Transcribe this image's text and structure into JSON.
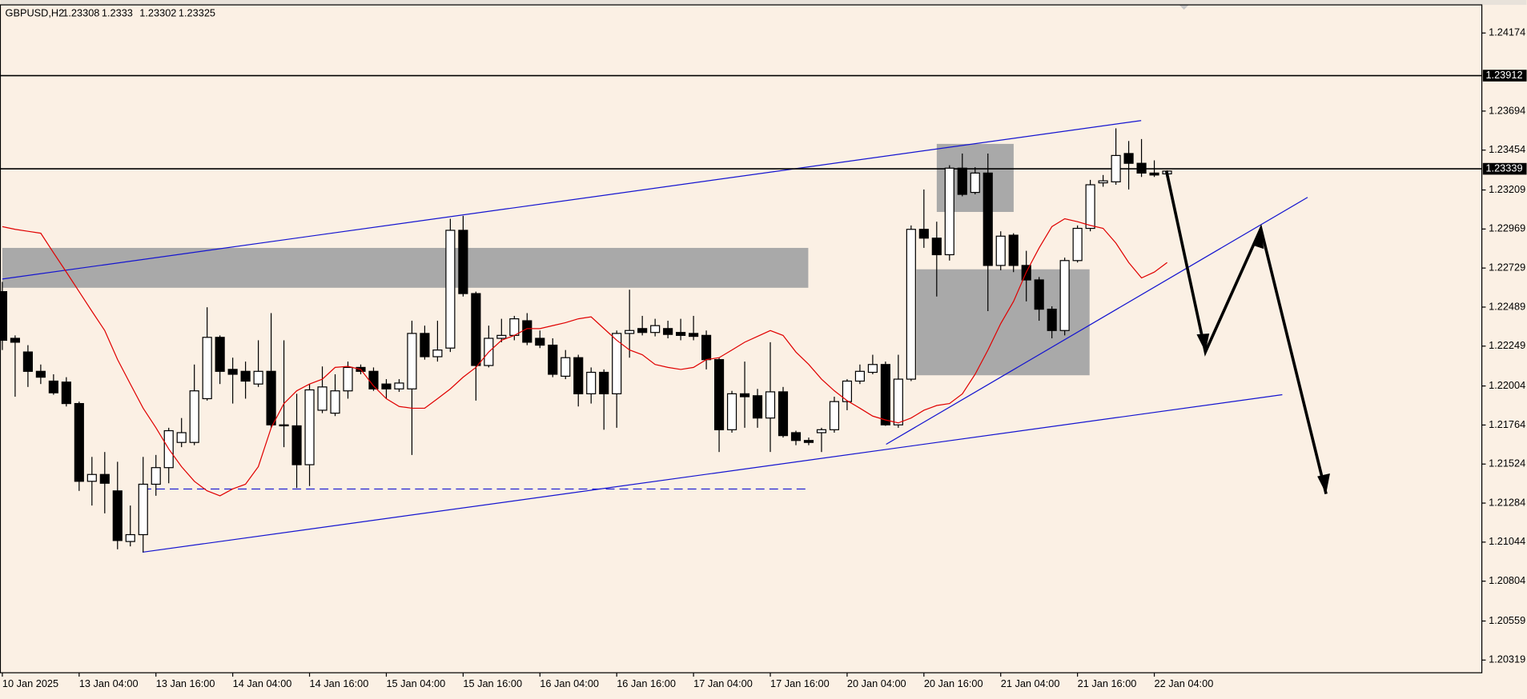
{
  "chart_data": {
    "type": "candlestick",
    "symbol": "GBPUSD,H2",
    "categories": [
      "10 Jan 2025",
      null,
      null,
      null,
      null,
      null,
      "13 Jan 04:00",
      null,
      null,
      null,
      null,
      null,
      "13 Jan 16:00",
      null,
      null,
      null,
      null,
      null,
      "14 Jan 04:00",
      null,
      null,
      null,
      null,
      null,
      "14 Jan 16:00",
      null,
      null,
      null,
      null,
      null,
      "15 Jan 04:00",
      null,
      null,
      null,
      null,
      null,
      "15 Jan 16:00",
      null,
      null,
      null,
      null,
      null,
      "16 Jan 04:00",
      null,
      null,
      null,
      null,
      null,
      "16 Jan 16:00",
      null,
      null,
      null,
      null,
      null,
      "17 Jan 04:00",
      null,
      null,
      null,
      null,
      null,
      "17 Jan 16:00",
      null,
      null,
      null,
      null,
      null,
      "20 Jan 04:00",
      null,
      null,
      null,
      null,
      null,
      "20 Jan 16:00",
      null,
      null,
      null,
      null,
      null,
      "21 Jan 04:00",
      null,
      null,
      null,
      null,
      null,
      "21 Jan 16:00",
      null,
      null,
      null,
      null,
      null,
      "22 Jan 04:00",
      null
    ],
    "open": [
      1.22584,
      1.22297,
      1.22213,
      1.22094,
      1.22034,
      1.22028,
      1.21896,
      1.21418,
      1.2146,
      1.21359,
      1.21048,
      1.2109,
      1.214,
      1.21502,
      1.21657,
      1.21657,
      1.21926,
      1.22303,
      1.22106,
      1.22094,
      1.22016,
      1.22094,
      1.21765,
      1.21759,
      1.2152,
      1.21855,
      1.21837,
      1.21974,
      1.22118,
      1.22094,
      1.22016,
      1.21986,
      1.21986,
      1.22327,
      1.22184,
      1.22237,
      1.22961,
      1.22572,
      1.2213,
      1.22297,
      1.22315,
      1.22405,
      1.22297,
      1.22255,
      1.22064,
      1.22178,
      1.21956,
      1.22088,
      1.21956,
      1.22327,
      1.22357,
      1.22333,
      1.22357,
      1.22333,
      1.22327,
      1.22315,
      1.22166,
      1.21735,
      1.21956,
      1.21944,
      1.21807,
      1.21968,
      1.21717,
      1.21669,
      1.21717,
      1.21735,
      1.21908,
      1.22034,
      1.22088,
      1.22136,
      1.21765,
      1.22046,
      1.22967,
      1.22913,
      1.22811,
      1.23343,
      1.23194,
      1.23313,
      1.22745,
      1.22931,
      1.22745,
      1.22656,
      1.22476,
      1.22345,
      1.22775,
      1.22973,
      1.23253,
      1.23259,
      1.23433,
      1.23373,
      1.23313,
      1.23308
    ],
    "high": [
      1.22644,
      1.22315,
      1.22255,
      1.22136,
      1.22076,
      1.22058,
      1.21908,
      1.21568,
      1.21598,
      1.21538,
      1.21269,
      1.21568,
      1.2158,
      1.21747,
      1.21807,
      1.22136,
      1.22488,
      1.22315,
      1.22178,
      1.22154,
      1.22285,
      1.22452,
      1.22285,
      1.21956,
      1.22016,
      1.22124,
      1.22076,
      1.22154,
      1.22136,
      1.22118,
      1.22046,
      1.22046,
      1.22405,
      1.22375,
      1.22405,
      1.23032,
      1.2305,
      1.22584,
      1.22375,
      1.22417,
      1.22435,
      1.22452,
      1.22345,
      1.22297,
      1.22225,
      1.22196,
      1.22118,
      1.22106,
      1.22345,
      1.22596,
      1.22435,
      1.22417,
      1.22405,
      1.22417,
      1.22435,
      1.22345,
      1.22178,
      1.21974,
      1.22154,
      1.21986,
      1.22273,
      1.21998,
      1.21729,
      1.21687,
      1.21747,
      1.21938,
      1.22046,
      1.22136,
      1.22196,
      1.22154,
      1.22196,
      1.22991,
      1.23212,
      1.23014,
      1.23361,
      1.23433,
      1.23349,
      1.23433,
      1.22955,
      1.22943,
      1.22835,
      1.22674,
      1.22494,
      1.22793,
      1.22991,
      1.23271,
      1.23301,
      1.23588,
      1.2351,
      1.23522,
      1.23391,
      1.2333
    ],
    "low": [
      1.22225,
      1.21938,
      1.21998,
      1.22016,
      1.2195,
      1.21878,
      1.21359,
      1.21269,
      1.21221,
      1.21,
      1.21018,
      1.20982,
      1.21329,
      1.21406,
      1.21628,
      1.2164,
      1.21914,
      1.22016,
      1.21896,
      1.21926,
      1.21998,
      1.21747,
      1.21628,
      1.21377,
      1.21389,
      1.21837,
      1.21819,
      1.21926,
      1.22076,
      1.21974,
      1.21926,
      1.21968,
      1.2158,
      1.22166,
      1.22154,
      1.22213,
      1.22554,
      1.21914,
      1.22118,
      1.22273,
      1.22285,
      1.22255,
      1.22237,
      1.22058,
      1.22046,
      1.21878,
      1.21896,
      1.21735,
      1.21747,
      1.22178,
      1.22315,
      1.22309,
      1.22297,
      1.22285,
      1.22285,
      1.22106,
      1.21598,
      1.21717,
      1.21747,
      1.21747,
      1.21598,
      1.21687,
      1.2164,
      1.2164,
      1.21598,
      1.21717,
      1.21855,
      1.22016,
      1.22076,
      1.21759,
      1.21747,
      1.22034,
      1.22853,
      1.22554,
      1.22775,
      1.2317,
      1.23182,
      1.22464,
      1.22715,
      1.22704,
      1.22524,
      1.22405,
      1.22297,
      1.22315,
      1.22763,
      1.22955,
      1.23229,
      1.23241,
      1.23212,
      1.23289,
      1.23289,
      1.23302
    ],
    "close": [
      1.22285,
      1.22273,
      1.22094,
      1.22058,
      1.21962,
      1.21896,
      1.21418,
      1.2146,
      1.21406,
      1.21054,
      1.2109,
      1.214,
      1.21502,
      1.21729,
      1.21717,
      1.21974,
      1.22303,
      1.22094,
      1.22076,
      1.22034,
      1.22094,
      1.21765,
      1.21759,
      1.2152,
      1.2198,
      1.21998,
      1.21974,
      1.22118,
      1.22094,
      1.21986,
      1.21986,
      1.22022,
      1.22327,
      1.22184,
      1.22225,
      1.22961,
      1.22572,
      1.2213,
      1.22297,
      1.22315,
      1.22417,
      1.22273,
      1.22255,
      1.22076,
      1.22178,
      1.21956,
      1.22088,
      1.21956,
      1.22327,
      1.22345,
      1.22333,
      1.22375,
      1.22321,
      1.22315,
      1.22309,
      1.22166,
      1.21735,
      1.21956,
      1.21938,
      1.21807,
      1.21968,
      1.21699,
      1.21669,
      1.21657,
      1.21735,
      1.21908,
      1.22034,
      1.22094,
      1.22136,
      1.21765,
      1.22046,
      1.22967,
      1.22913,
      1.22811,
      1.23343,
      1.23182,
      1.23313,
      1.22745,
      1.22925,
      1.22745,
      1.22656,
      1.22476,
      1.22345,
      1.22775,
      1.22973,
      1.23241,
      1.23265,
      1.23421,
      1.23373,
      1.23313,
      1.23301,
      1.23325
    ],
    "ma": {
      "color": "#e00000",
      "values": [
        1.22984,
        1.22967,
        1.22955,
        1.22943,
        1.22823,
        1.22704,
        1.22584,
        1.22464,
        1.22345,
        1.22166,
        1.22016,
        1.21867,
        1.21747,
        1.21616,
        1.21508,
        1.21418,
        1.21359,
        1.21329,
        1.21371,
        1.214,
        1.21508,
        1.21747,
        1.21896,
        1.21974,
        1.22016,
        1.22046,
        1.22118,
        1.22124,
        1.22106,
        1.22004,
        1.21926,
        1.21878,
        1.21867,
        1.21867,
        1.21926,
        1.21986,
        1.22058,
        1.22118,
        1.22213,
        1.22285,
        1.22315,
        1.22357,
        1.22357,
        1.22375,
        1.22393,
        1.22417,
        1.22429,
        1.22357,
        1.22285,
        1.22225,
        1.22196,
        1.22136,
        1.22118,
        1.22106,
        1.22118,
        1.22166,
        1.22178,
        1.22225,
        1.22273,
        1.22309,
        1.22345,
        1.22315,
        1.22213,
        1.22136,
        1.22046,
        1.21974,
        1.21914,
        1.21867,
        1.21819,
        1.21795,
        1.21777,
        1.21807,
        1.21855,
        1.21884,
        1.21896,
        1.21956,
        1.22076,
        1.22225,
        1.22387,
        1.22524,
        1.22704,
        1.22853,
        1.22984,
        1.23032,
        1.23014,
        1.22991,
        1.22973,
        1.22883,
        1.22763,
        1.22668,
        1.22704,
        1.22763
      ]
    },
    "up_color": "#ffffff",
    "down_color": "#000000",
    "ylim": [
      1.20241,
      1.24347
    ],
    "yticks": [
      1.24174,
      1.23694,
      1.23454,
      1.23209,
      1.22969,
      1.22729,
      1.22489,
      1.22249,
      1.22004,
      1.21764,
      1.21524,
      1.21284,
      1.21044,
      1.20804,
      1.20559,
      1.20319
    ],
    "price_lines": [
      1.23912,
      1.23339
    ],
    "grid": false
  }
}
